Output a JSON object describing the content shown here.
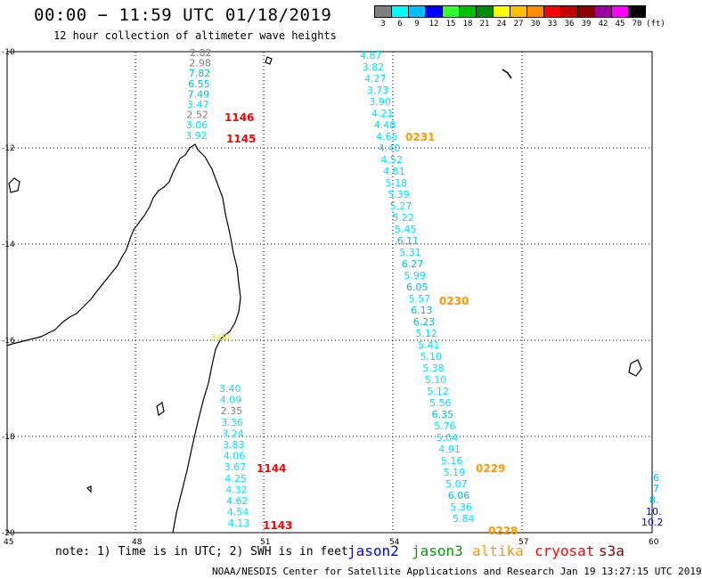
{
  "header": {
    "title": "00:00 − 11:59 UTC 01/18/2019",
    "subtitle": "12 hour collection of altimeter wave heights"
  },
  "colorbar": {
    "unit": "(ft)",
    "bins": [
      {
        "label": "3",
        "color": "#7f7f7f"
      },
      {
        "label": "6",
        "color": "#00ffff"
      },
      {
        "label": "9",
        "color": "#00c0ff"
      },
      {
        "label": "12",
        "color": "#0000ff"
      },
      {
        "label": "15",
        "color": "#30ff30"
      },
      {
        "label": "18",
        "color": "#00c000"
      },
      {
        "label": "21",
        "color": "#008c00"
      },
      {
        "label": "24",
        "color": "#ffff00"
      },
      {
        "label": "27",
        "color": "#ffc000"
      },
      {
        "label": "30",
        "color": "#ff8c00"
      },
      {
        "label": "33",
        "color": "#ff0000"
      },
      {
        "label": "36",
        "color": "#c00000"
      },
      {
        "label": "39",
        "color": "#8c0000"
      },
      {
        "label": "42",
        "color": "#a000a0"
      },
      {
        "label": "45",
        "color": "#ff00ff"
      },
      {
        "label": "70",
        "color": "#000000"
      }
    ]
  },
  "axes": {
    "lat_labels": [
      "-10",
      "-12",
      "-14",
      "-16",
      "-18",
      "-20"
    ],
    "lon_labels": [
      "45",
      "48",
      "51",
      "54",
      "57",
      "60"
    ],
    "lat_range": [
      -20,
      -10
    ],
    "lon_range": [
      45,
      60
    ]
  },
  "colors": {
    "grey": "#7f7f7f",
    "cyan": "#00e0ff",
    "teal": "#00bcd8",
    "blue": "#0000e0",
    "red": "#ff0000",
    "orange": "#ff9900",
    "yellow": "#e8e800"
  },
  "tracks": {
    "west": [
      {
        "v": "2.82",
        "c": "grey"
      },
      {
        "v": "2.98",
        "c": "grey"
      },
      {
        "v": "7.82",
        "c": "teal"
      },
      {
        "v": "6.55",
        "c": "teal"
      },
      {
        "v": "7.49",
        "c": "teal"
      },
      {
        "v": "3.47",
        "c": "cyan"
      },
      {
        "v": "2.52",
        "c": "grey"
      },
      {
        "v": "3.06",
        "c": "cyan"
      },
      {
        "v": "3.92",
        "c": "cyan"
      }
    ],
    "west_south": [
      {
        "v": "3.40",
        "c": "cyan"
      },
      {
        "v": "4.09",
        "c": "cyan"
      },
      {
        "v": "2.35",
        "c": "grey"
      },
      {
        "v": "3.36",
        "c": "cyan"
      },
      {
        "v": "3.24",
        "c": "cyan"
      },
      {
        "v": "3.83",
        "c": "cyan"
      },
      {
        "v": "4.06",
        "c": "cyan"
      },
      {
        "v": "3.67",
        "c": "cyan"
      },
      {
        "v": "4.25",
        "c": "cyan"
      },
      {
        "v": "4.32",
        "c": "cyan"
      },
      {
        "v": "4.62",
        "c": "cyan"
      },
      {
        "v": "4.54",
        "c": "cyan"
      },
      {
        "v": "4.13",
        "c": "cyan"
      }
    ],
    "east": [
      {
        "v": "4.87",
        "c": "cyan"
      },
      {
        "v": "3.82",
        "c": "cyan"
      },
      {
        "v": "4.27",
        "c": "cyan"
      },
      {
        "v": "3.73",
        "c": "cyan"
      },
      {
        "v": "3.90",
        "c": "cyan"
      },
      {
        "v": "4.21",
        "c": "cyan"
      },
      {
        "v": "4.48",
        "c": "cyan"
      },
      {
        "v": "4.65",
        "c": "cyan"
      },
      {
        "v": "4.40",
        "c": "cyan"
      },
      {
        "v": "4.52",
        "c": "cyan"
      },
      {
        "v": "4.81",
        "c": "cyan"
      },
      {
        "v": "5.18",
        "c": "cyan"
      },
      {
        "v": "5.39",
        "c": "cyan"
      },
      {
        "v": "5.27",
        "c": "cyan"
      },
      {
        "v": "5.22",
        "c": "cyan"
      },
      {
        "v": "5.45",
        "c": "cyan"
      },
      {
        "v": "6.11",
        "c": "teal"
      },
      {
        "v": "5.31",
        "c": "cyan"
      },
      {
        "v": "6.27",
        "c": "teal"
      },
      {
        "v": "5.99",
        "c": "cyan"
      },
      {
        "v": "6.05",
        "c": "teal"
      },
      {
        "v": "5.57",
        "c": "cyan"
      },
      {
        "v": "6.13",
        "c": "teal"
      },
      {
        "v": "6.23",
        "c": "teal"
      },
      {
        "v": "5.12",
        "c": "cyan"
      },
      {
        "v": "5.41",
        "c": "cyan"
      },
      {
        "v": "5.10",
        "c": "cyan"
      },
      {
        "v": "5.38",
        "c": "cyan"
      },
      {
        "v": "5.10",
        "c": "cyan"
      },
      {
        "v": "5.12",
        "c": "cyan"
      },
      {
        "v": "5.56",
        "c": "cyan"
      },
      {
        "v": "6.35",
        "c": "teal"
      },
      {
        "v": "5.76",
        "c": "cyan"
      },
      {
        "v": "5.04",
        "c": "cyan"
      },
      {
        "v": "4.91",
        "c": "cyan"
      },
      {
        "v": "5.16",
        "c": "cyan"
      },
      {
        "v": "5.19",
        "c": "cyan"
      },
      {
        "v": "5.07",
        "c": "cyan"
      },
      {
        "v": "6.06",
        "c": "teal"
      },
      {
        "v": "5.36",
        "c": "cyan"
      },
      {
        "v": "5.84",
        "c": "cyan"
      }
    ],
    "far_east": [
      {
        "v": "6",
        "c": "teal"
      },
      {
        "v": "7",
        "c": "teal"
      },
      {
        "v": "8.",
        "c": "teal"
      },
      {
        "v": "10.",
        "c": "blue"
      },
      {
        "v": "10.2",
        "c": "blue"
      }
    ],
    "coast_marker": {
      "v": "3.00",
      "c": "yellow"
    }
  },
  "times": [
    {
      "label": "1146",
      "c": "red"
    },
    {
      "label": "1145",
      "c": "red"
    },
    {
      "label": "0231",
      "c": "orange"
    },
    {
      "label": "0230",
      "c": "orange"
    },
    {
      "label": "1144",
      "c": "red"
    },
    {
      "label": "0229",
      "c": "orange"
    },
    {
      "label": "1143",
      "c": "red"
    },
    {
      "label": "0228",
      "c": "orange"
    }
  ],
  "note": "note: 1) Time is in UTC; 2) SWH is in feet",
  "satellites": [
    {
      "name": "jason2",
      "color": "#0000ff"
    },
    {
      "name": "jason3",
      "color": "#00a000"
    },
    {
      "name": "altika",
      "color": "#ff9900"
    },
    {
      "name": "cryosat",
      "color": "#ff0000"
    },
    {
      "name": "s3a",
      "color": "#8c0000"
    }
  ],
  "credit": "NOAA/NESDIS Center for Satellite Applications and Research    Jan 19 13:27:15 UTC 2019"
}
